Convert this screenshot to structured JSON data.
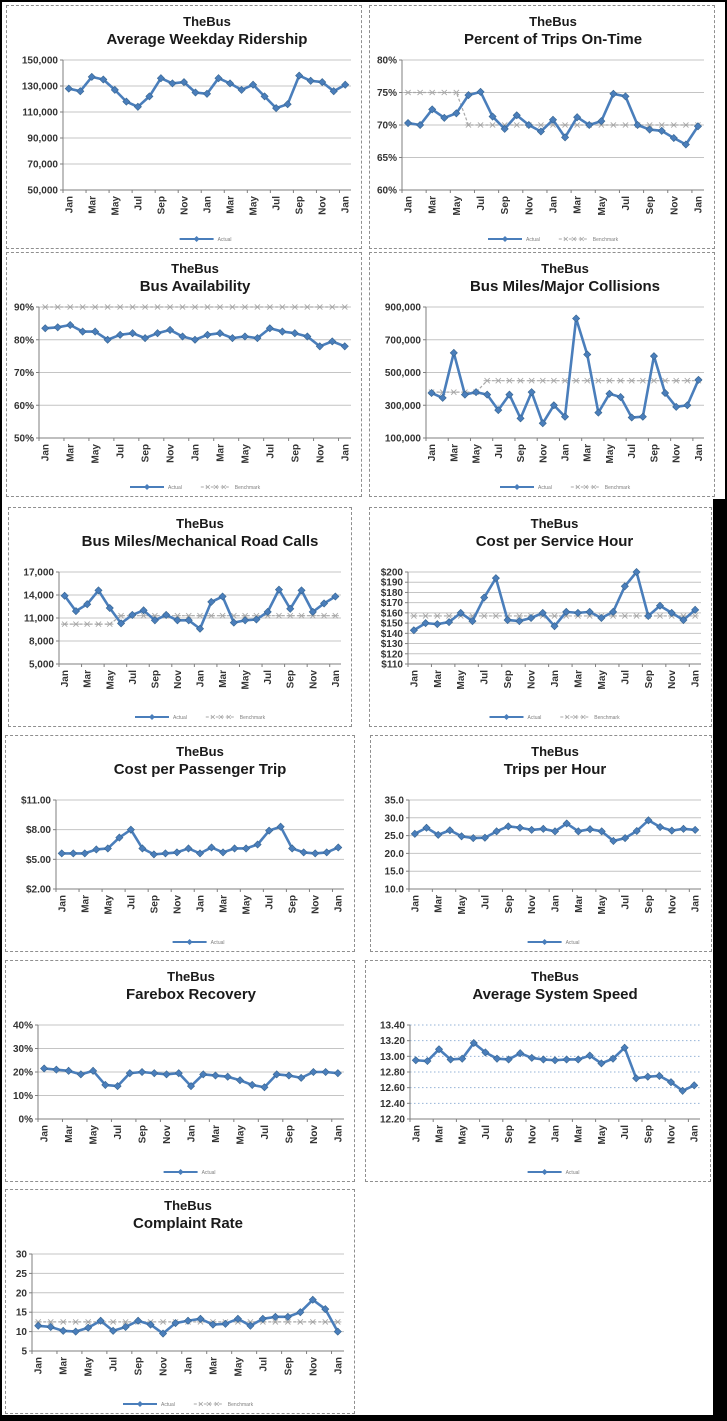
{
  "legend_labels": {
    "actual": "Actual",
    "benchmark": "Benchmark"
  },
  "colors": {
    "series": "#4A7EBB",
    "series_dark": "#36648F",
    "benchmark": "#A8A8A8",
    "grid": "#C4C4C4",
    "grid_blue": "#95B3D7",
    "axis": "#7F7F7F",
    "tick": "#333333",
    "title": "#1A1A1A",
    "legend_text": "#7F7F7F"
  },
  "chart_data": {
    "type": "line",
    "x_axis": {
      "labels": [
        "Jan",
        "Mar",
        "May",
        "Jul",
        "Sep",
        "Nov",
        "Jan",
        "Mar",
        "May",
        "Jul",
        "Sep",
        "Nov",
        "Jan"
      ],
      "points": 25,
      "note": "25 monthly points spanning two years; every other month labeled"
    },
    "charts": [
      {
        "title": "TheBus",
        "subtitle": "Average Weekday Ridership",
        "ylim": [
          50000,
          150000
        ],
        "ytick_labels": [
          "150,000",
          "130,000",
          "110,000",
          "90,000",
          "70,000",
          "50,000"
        ],
        "values": [
          128000,
          126000,
          137000,
          135000,
          127000,
          118000,
          114000,
          122000,
          136000,
          132000,
          133000,
          125000,
          124000,
          136000,
          132000,
          127000,
          131000,
          122000,
          113000,
          116000,
          138000,
          134000,
          133000,
          126000,
          131000
        ],
        "benchmark": null,
        "grid": "solid",
        "legend": [
          "actual"
        ]
      },
      {
        "title": "TheBus",
        "subtitle": "Percent of Trips On-Time",
        "ylim": [
          60,
          80
        ],
        "ytick_labels": [
          "80%",
          "75%",
          "70%",
          "65%",
          "60%"
        ],
        "values": [
          70.3,
          70,
          72.4,
          71.1,
          71.8,
          74.6,
          75.1,
          71.3,
          69.4,
          71.5,
          70,
          69,
          70.8,
          68.1,
          71.2,
          70,
          70.6,
          74.8,
          74.4,
          70,
          69.3,
          69.1,
          68,
          67,
          69.8
        ],
        "benchmark": [
          75,
          75,
          75,
          75,
          75,
          70,
          70,
          70,
          70,
          70,
          70,
          70,
          70,
          70,
          70,
          70,
          70,
          70,
          70,
          70,
          70,
          70,
          70,
          70,
          70
        ],
        "grid": "solid",
        "legend": [
          "actual",
          "benchmark"
        ]
      },
      {
        "title": "TheBus",
        "subtitle": "Bus Availability",
        "ylim": [
          50,
          90
        ],
        "ytick_labels": [
          "90%",
          "80%",
          "70%",
          "60%",
          "50%"
        ],
        "values": [
          83.5,
          83.8,
          84.5,
          82.5,
          82.5,
          80,
          81.5,
          82,
          80.5,
          82,
          83,
          81,
          80,
          81.5,
          82,
          80.5,
          81,
          80.5,
          83.5,
          82.5,
          82,
          81,
          78,
          79.5,
          78
        ],
        "benchmark": [
          90,
          90,
          90,
          90,
          90,
          90,
          90,
          90,
          90,
          90,
          90,
          90,
          90,
          90,
          90,
          90,
          90,
          90,
          90,
          90,
          90,
          90,
          90,
          90,
          90
        ],
        "grid": "solid",
        "legend": [
          "actual",
          "benchmark"
        ]
      },
      {
        "title": "TheBus",
        "subtitle": "Bus Miles/Major Collisions",
        "ylim": [
          100000,
          900000
        ],
        "ytick_labels": [
          "900,000",
          "700,000",
          "500,000",
          "300,000",
          "100,000"
        ],
        "values": [
          375000,
          345000,
          620000,
          365000,
          380000,
          365000,
          270000,
          365000,
          220000,
          380000,
          190000,
          300000,
          230000,
          830000,
          610000,
          255000,
          370000,
          350000,
          225000,
          230000,
          600000,
          375000,
          290000,
          300000,
          455000
        ],
        "benchmark": [
          380000,
          380000,
          380000,
          380000,
          380000,
          450000,
          450000,
          450000,
          450000,
          450000,
          450000,
          450000,
          450000,
          450000,
          450000,
          450000,
          450000,
          450000,
          450000,
          450000,
          450000,
          450000,
          450000,
          450000,
          450000
        ],
        "grid": "solid",
        "legend": [
          "actual",
          "benchmark"
        ]
      },
      {
        "title": "TheBus",
        "subtitle": "Bus Miles/Mechanical Road Calls",
        "ylim": [
          5000,
          17000
        ],
        "ytick_labels": [
          "17,000",
          "14,000",
          "11,000",
          "8,000",
          "5,000"
        ],
        "values": [
          13900,
          11900,
          12800,
          14600,
          12300,
          10300,
          11400,
          12000,
          10700,
          11400,
          10700,
          10700,
          9600,
          13100,
          13800,
          10400,
          10700,
          10800,
          11800,
          14700,
          12200,
          14600,
          11800,
          12900,
          13800
        ],
        "benchmark": [
          10200,
          10200,
          10200,
          10200,
          10200,
          11300,
          11300,
          11300,
          11300,
          11300,
          11300,
          11300,
          11300,
          11300,
          11300,
          11300,
          11300,
          11300,
          11300,
          11300,
          11300,
          11300,
          11300,
          11300,
          11300
        ],
        "grid": "solid",
        "legend": [
          "actual",
          "benchmark"
        ]
      },
      {
        "title": "TheBus",
        "subtitle": "Cost per Service Hour",
        "ylim": [
          110,
          200
        ],
        "ytick_labels": [
          "$200",
          "$190",
          "$180",
          "$170",
          "$160",
          "$150",
          "$140",
          "$130",
          "$120",
          "$110"
        ],
        "values": [
          143,
          150,
          149,
          151,
          160,
          152,
          175,
          194,
          153,
          152,
          155,
          160,
          147,
          161,
          160,
          161,
          155,
          161,
          186,
          200,
          157,
          167,
          160,
          153,
          163
        ],
        "benchmark": [
          157,
          157,
          157,
          157,
          157,
          157,
          157,
          157,
          157,
          157,
          157,
          157,
          157,
          157,
          157,
          157,
          157,
          157,
          157,
          157,
          157,
          157,
          157,
          157,
          157
        ],
        "grid": "solid",
        "legend": [
          "actual",
          "benchmark"
        ]
      },
      {
        "title": "TheBus",
        "subtitle": "Cost per Passenger Trip",
        "ylim": [
          2,
          11
        ],
        "ytick_labels": [
          "$11.00",
          "$8.00",
          "$5.00",
          "$2.00"
        ],
        "values": [
          5.6,
          5.6,
          5.6,
          6.0,
          6.1,
          7.2,
          8.0,
          6.1,
          5.5,
          5.6,
          5.7,
          6.1,
          5.6,
          6.2,
          5.7,
          6.1,
          6.1,
          6.5,
          7.9,
          8.3,
          6.1,
          5.7,
          5.6,
          5.7,
          6.2
        ],
        "benchmark": null,
        "grid": "solid",
        "legend": [
          "actual"
        ]
      },
      {
        "title": "TheBus",
        "subtitle": "Trips per Hour",
        "ylim": [
          10,
          35
        ],
        "ytick_labels": [
          "35.0",
          "30.0",
          "25.0",
          "20.0",
          "15.0",
          "10.0"
        ],
        "values": [
          25.5,
          27.2,
          25.2,
          26.5,
          24.8,
          24.3,
          24.4,
          26.2,
          27.6,
          27.2,
          26.6,
          26.9,
          26.2,
          28.4,
          26.2,
          26.8,
          26.2,
          23.5,
          24.3,
          26.3,
          29.3,
          27.4,
          26.4,
          26.9,
          26.6
        ],
        "benchmark": null,
        "grid": "solid",
        "legend": [
          "actual"
        ]
      },
      {
        "title": "TheBus",
        "subtitle": "Farebox Recovery",
        "ylim": [
          0,
          40
        ],
        "ytick_labels": [
          "40%",
          "30%",
          "20%",
          "10%",
          "0%"
        ],
        "values": [
          21.5,
          21,
          20.5,
          19,
          20.5,
          14.5,
          14,
          19.5,
          20,
          19.5,
          19,
          19.5,
          14,
          19,
          18.5,
          18,
          16.5,
          14.5,
          13.5,
          19,
          18.5,
          17.5,
          20,
          20,
          19.5
        ],
        "benchmark": null,
        "grid": "solid",
        "legend": [
          "actual"
        ]
      },
      {
        "title": "TheBus",
        "subtitle": "Average System Speed",
        "ylim": [
          12.2,
          13.4
        ],
        "ytick_labels": [
          "13.40",
          "13.20",
          "13.00",
          "12.80",
          "12.60",
          "12.40",
          "12.20"
        ],
        "values": [
          12.95,
          12.94,
          13.09,
          12.96,
          12.97,
          13.17,
          13.05,
          12.97,
          12.96,
          13.04,
          12.98,
          12.96,
          12.95,
          12.96,
          12.96,
          13.01,
          12.91,
          12.97,
          13.11,
          12.72,
          12.74,
          12.75,
          12.67,
          12.56,
          12.63
        ],
        "benchmark": null,
        "grid": "dotted-blue",
        "legend": [
          "actual"
        ]
      },
      {
        "title": "TheBus",
        "subtitle": "Complaint Rate",
        "ylim": [
          5,
          30
        ],
        "ytick_labels": [
          "30",
          "25",
          "20",
          "15",
          "10",
          "5"
        ],
        "values": [
          11.5,
          11.2,
          10.2,
          10.0,
          11.0,
          12.8,
          10.2,
          11.2,
          12.8,
          11.8,
          9.5,
          12.2,
          12.8,
          13.3,
          11.8,
          12.0,
          13.3,
          11.5,
          13.3,
          13.8,
          13.8,
          15.0,
          18.2,
          15.8,
          10.0
        ],
        "benchmark": [
          12.5,
          12.5,
          12.5,
          12.5,
          12.5,
          12.5,
          12.5,
          12.5,
          12.5,
          12.5,
          12.5,
          12.5,
          12.5,
          12.5,
          12.5,
          12.5,
          12.5,
          12.5,
          12.5,
          12.5,
          12.5,
          12.5,
          12.5,
          12.5,
          12.5
        ],
        "grid": "solid",
        "legend": [
          "actual",
          "benchmark"
        ]
      }
    ]
  }
}
